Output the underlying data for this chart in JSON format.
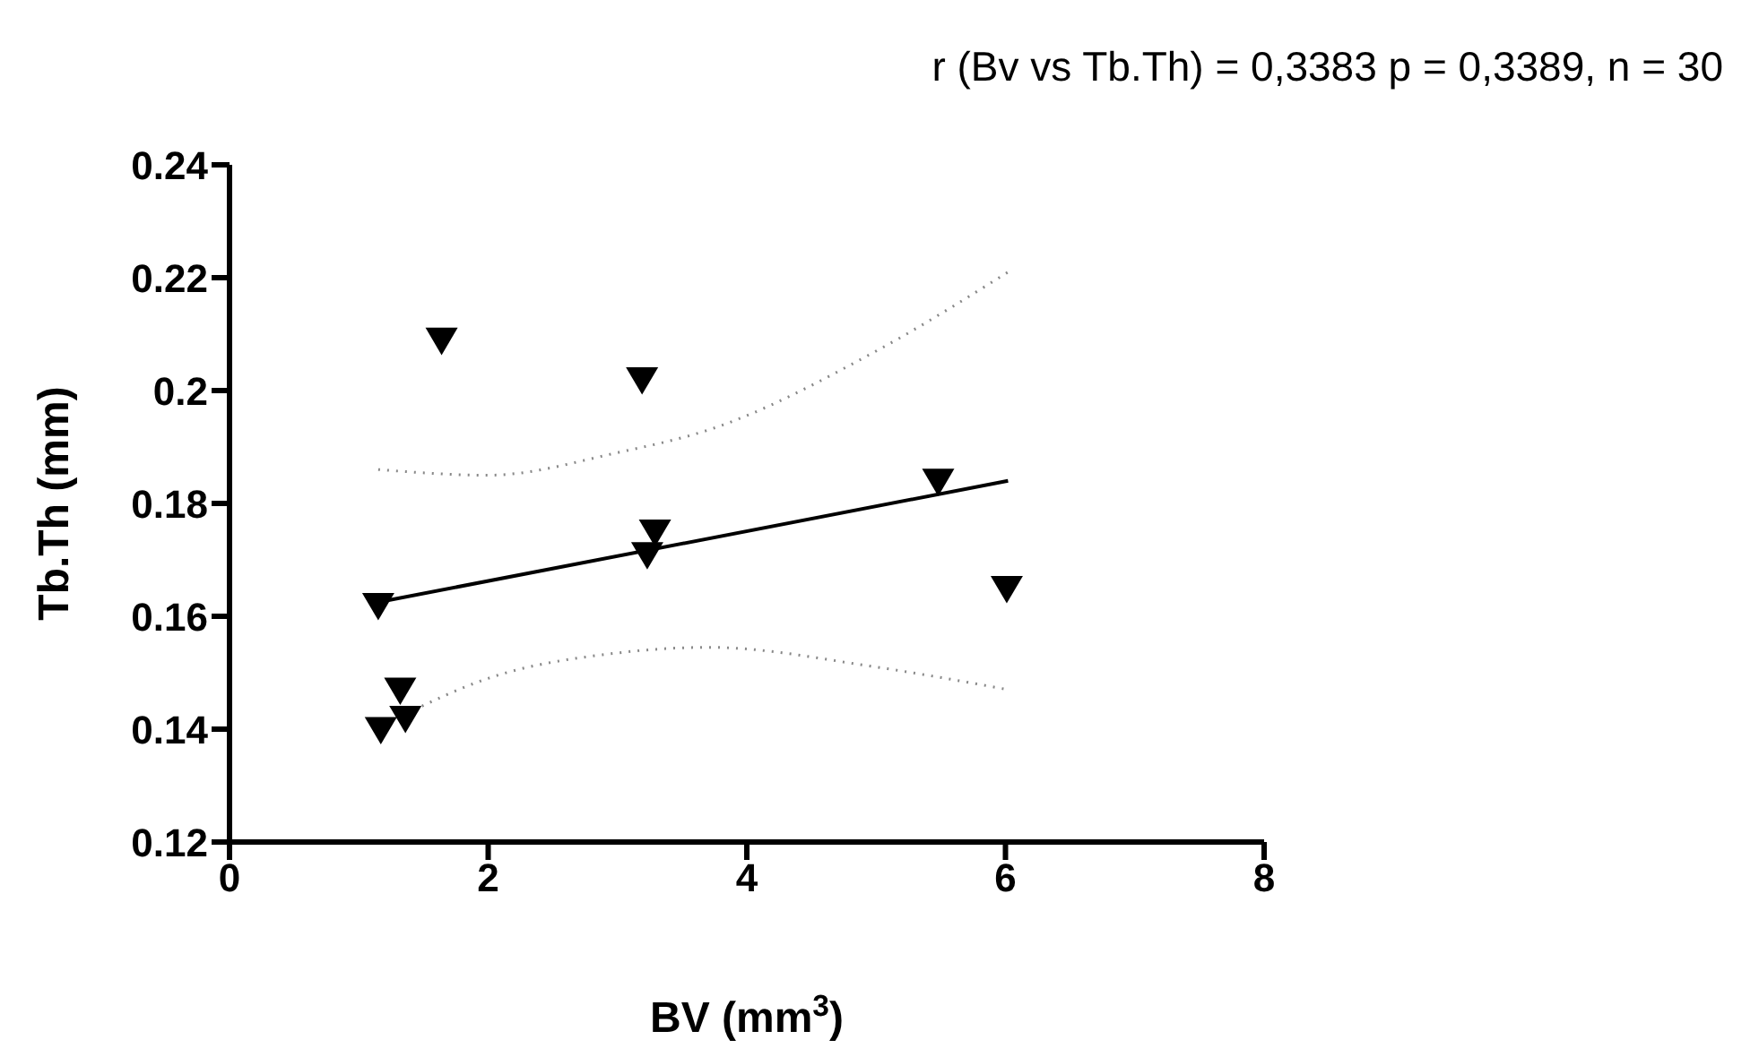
{
  "chart_data": {
    "type": "scatter",
    "title": "r (Bv vs Tb.Th) = 0,3383 p = 0,3389, n = 30",
    "xlabel": "BV (mm$^{3}$)",
    "ylabel": "Tb.Th (mm)",
    "xlim": [
      0,
      8
    ],
    "xticks": [
      0,
      2,
      4,
      6,
      8
    ],
    "ylim": [
      0.12,
      0.24
    ],
    "yticks": [
      0.12,
      0.14,
      0.16,
      0.18,
      0.2,
      0.22,
      0.24
    ],
    "series": [
      {
        "color": "#000000",
        "marker": "triangle",
        "x": [
          1.64,
          3.19,
          5.48,
          3.29,
          3.23,
          1.15,
          6.01,
          1.32,
          1.36,
          1.17
        ],
        "values": [
          0.209,
          0.202,
          0.184,
          0.175,
          0.171,
          0.162,
          0.165,
          0.147,
          0.142,
          0.14
        ]
      },
      {
        "type": "line",
        "color": "#000000",
        "x": [
          1.15,
          6.02
        ],
        "values": [
          0.1625,
          0.184
        ]
      },
      {
        "type": "line",
        "color": "#888888",
        "line_style": "dotted",
        "x": [
          1.15,
          2,
          3,
          3.7,
          5,
          6.02
        ],
        "values": [
          0.186,
          0.185,
          0.189,
          0.193,
          0.207,
          0.221
        ]
      },
      {
        "type": "line",
        "color": "#888888",
        "line_style": "dotted",
        "x": [
          1.3,
          2,
          3,
          3.7,
          5,
          6.02
        ],
        "values": [
          0.142,
          0.149,
          0.1535,
          0.1545,
          0.151,
          0.147
        ]
      }
    ]
  }
}
